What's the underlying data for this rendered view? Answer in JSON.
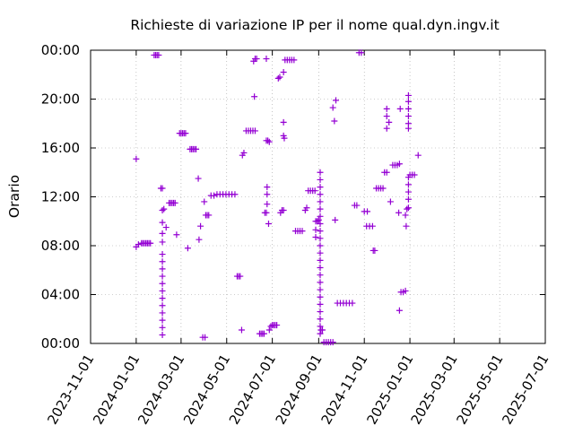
{
  "chart_data": {
    "type": "scatter",
    "title": "Richieste di variazione IP per il nome qual.dyn.ingv.it",
    "xlabel": "",
    "ylabel": "Orario",
    "x_ticks": [
      "2023-11-01",
      "2024-01-01",
      "2024-03-01",
      "2024-05-01",
      "2024-07-01",
      "2024-09-01",
      "2024-11-01",
      "2025-01-01",
      "2025-03-01",
      "2025-05-01",
      "2025-07-01"
    ],
    "y_ticks": [
      "00:00",
      "04:00",
      "08:00",
      "12:00",
      "16:00",
      "20:00",
      "00:00"
    ],
    "xlim": [
      "2023-11-01",
      "2025-07-01"
    ],
    "ylim": [
      0,
      24
    ],
    "grid": true,
    "marker": "+",
    "color": "#9400d3",
    "points": [
      {
        "x": "2024-01-01",
        "y": 15.1
      },
      {
        "x": "2024-01-01",
        "y": 7.9
      },
      {
        "x": "2024-01-04",
        "y": 8.1
      },
      {
        "x": "2024-01-08",
        "y": 8.2
      },
      {
        "x": "2024-01-10",
        "y": 8.2
      },
      {
        "x": "2024-01-12",
        "y": 8.2
      },
      {
        "x": "2024-01-14",
        "y": 8.2
      },
      {
        "x": "2024-01-16",
        "y": 8.2
      },
      {
        "x": "2024-01-18",
        "y": 8.2
      },
      {
        "x": "2024-01-20",
        "y": 8.2
      },
      {
        "x": "2024-01-25",
        "y": 23.6
      },
      {
        "x": "2024-01-27",
        "y": 23.6
      },
      {
        "x": "2024-01-29",
        "y": 23.6
      },
      {
        "x": "2024-01-31",
        "y": 23.6
      },
      {
        "x": "2024-02-03",
        "y": 12.7
      },
      {
        "x": "2024-02-05",
        "y": 12.7
      },
      {
        "x": "2024-02-05",
        "y": 10.9
      },
      {
        "x": "2024-02-07",
        "y": 11.0
      },
      {
        "x": "2024-02-05",
        "y": 0.7
      },
      {
        "x": "2024-02-05",
        "y": 1.3
      },
      {
        "x": "2024-02-05",
        "y": 1.9
      },
      {
        "x": "2024-02-05",
        "y": 2.5
      },
      {
        "x": "2024-02-05",
        "y": 3.1
      },
      {
        "x": "2024-02-05",
        "y": 3.7
      },
      {
        "x": "2024-02-05",
        "y": 4.3
      },
      {
        "x": "2024-02-05",
        "y": 4.9
      },
      {
        "x": "2024-02-05",
        "y": 5.5
      },
      {
        "x": "2024-02-05",
        "y": 6.1
      },
      {
        "x": "2024-02-05",
        "y": 6.7
      },
      {
        "x": "2024-02-05",
        "y": 7.3
      },
      {
        "x": "2024-02-05",
        "y": 8.3
      },
      {
        "x": "2024-02-05",
        "y": 9.0
      },
      {
        "x": "2024-02-05",
        "y": 9.9
      },
      {
        "x": "2024-02-10",
        "y": 9.5
      },
      {
        "x": "2024-02-14",
        "y": 11.5
      },
      {
        "x": "2024-02-16",
        "y": 11.5
      },
      {
        "x": "2024-02-18",
        "y": 11.5
      },
      {
        "x": "2024-02-20",
        "y": 11.5
      },
      {
        "x": "2024-02-22",
        "y": 11.5
      },
      {
        "x": "2024-02-24",
        "y": 8.9
      },
      {
        "x": "2024-02-28",
        "y": 17.2
      },
      {
        "x": "2024-03-01",
        "y": 17.2
      },
      {
        "x": "2024-03-03",
        "y": 17.2
      },
      {
        "x": "2024-03-05",
        "y": 17.2
      },
      {
        "x": "2024-03-07",
        "y": 17.2
      },
      {
        "x": "2024-03-10",
        "y": 7.8
      },
      {
        "x": "2024-03-13",
        "y": 15.9
      },
      {
        "x": "2024-03-15",
        "y": 15.9
      },
      {
        "x": "2024-03-17",
        "y": 15.9
      },
      {
        "x": "2024-03-19",
        "y": 15.9
      },
      {
        "x": "2024-03-21",
        "y": 15.9
      },
      {
        "x": "2024-03-24",
        "y": 13.5
      },
      {
        "x": "2024-03-25",
        "y": 8.5
      },
      {
        "x": "2024-03-27",
        "y": 9.6
      },
      {
        "x": "2024-04-01",
        "y": 11.6
      },
      {
        "x": "2024-03-30",
        "y": 0.5
      },
      {
        "x": "2024-04-02",
        "y": 0.5
      },
      {
        "x": "2024-04-03",
        "y": 10.5
      },
      {
        "x": "2024-04-05",
        "y": 10.5
      },
      {
        "x": "2024-04-07",
        "y": 10.5
      },
      {
        "x": "2024-04-10",
        "y": 12.1
      },
      {
        "x": "2024-04-14",
        "y": 12.1
      },
      {
        "x": "2024-04-18",
        "y": 12.2
      },
      {
        "x": "2024-04-22",
        "y": 12.2
      },
      {
        "x": "2024-04-26",
        "y": 12.2
      },
      {
        "x": "2024-04-30",
        "y": 12.2
      },
      {
        "x": "2024-05-04",
        "y": 12.2
      },
      {
        "x": "2024-05-08",
        "y": 12.2
      },
      {
        "x": "2024-05-12",
        "y": 12.2
      },
      {
        "x": "2024-05-15",
        "y": 5.5
      },
      {
        "x": "2024-05-17",
        "y": 5.5
      },
      {
        "x": "2024-05-19",
        "y": 5.5
      },
      {
        "x": "2024-05-21",
        "y": 1.1
      },
      {
        "x": "2024-05-22",
        "y": 15.4
      },
      {
        "x": "2024-05-24",
        "y": 15.6
      },
      {
        "x": "2024-05-27",
        "y": 17.4
      },
      {
        "x": "2024-05-30",
        "y": 17.4
      },
      {
        "x": "2024-06-02",
        "y": 17.4
      },
      {
        "x": "2024-06-05",
        "y": 17.4
      },
      {
        "x": "2024-06-08",
        "y": 17.4
      },
      {
        "x": "2024-06-06",
        "y": 23.1
      },
      {
        "x": "2024-06-08",
        "y": 23.3
      },
      {
        "x": "2024-06-10",
        "y": 23.3
      },
      {
        "x": "2024-06-07",
        "y": 20.2
      },
      {
        "x": "2024-06-14",
        "y": 0.8
      },
      {
        "x": "2024-06-16",
        "y": 0.8
      },
      {
        "x": "2024-06-18",
        "y": 0.8
      },
      {
        "x": "2024-06-20",
        "y": 0.8
      },
      {
        "x": "2024-06-21",
        "y": 10.7
      },
      {
        "x": "2024-06-23",
        "y": 10.7
      },
      {
        "x": "2024-06-23",
        "y": 23.3
      },
      {
        "x": "2024-06-23",
        "y": 16.6
      },
      {
        "x": "2024-06-25",
        "y": 16.6
      },
      {
        "x": "2024-06-27",
        "y": 16.5
      },
      {
        "x": "2024-06-24",
        "y": 12.8
      },
      {
        "x": "2024-06-24",
        "y": 12.2
      },
      {
        "x": "2024-06-24",
        "y": 11.4
      },
      {
        "x": "2024-06-26",
        "y": 9.8
      },
      {
        "x": "2024-06-27",
        "y": 1.1
      },
      {
        "x": "2024-06-29",
        "y": 1.4
      },
      {
        "x": "2024-07-01",
        "y": 1.5
      },
      {
        "x": "2024-07-03",
        "y": 1.5
      },
      {
        "x": "2024-07-05",
        "y": 1.5
      },
      {
        "x": "2024-07-07",
        "y": 1.5
      },
      {
        "x": "2024-07-09",
        "y": 21.7
      },
      {
        "x": "2024-07-11",
        "y": 21.8
      },
      {
        "x": "2024-07-12",
        "y": 10.7
      },
      {
        "x": "2024-07-14",
        "y": 10.9
      },
      {
        "x": "2024-07-16",
        "y": 10.9
      },
      {
        "x": "2024-07-16",
        "y": 18.1
      },
      {
        "x": "2024-07-16",
        "y": 17.0
      },
      {
        "x": "2024-07-17",
        "y": 16.8
      },
      {
        "x": "2024-07-16",
        "y": 22.2
      },
      {
        "x": "2024-07-18",
        "y": 23.2
      },
      {
        "x": "2024-07-21",
        "y": 23.2
      },
      {
        "x": "2024-07-24",
        "y": 23.2
      },
      {
        "x": "2024-07-27",
        "y": 23.2
      },
      {
        "x": "2024-07-30",
        "y": 23.2
      },
      {
        "x": "2024-08-01",
        "y": 9.2
      },
      {
        "x": "2024-08-04",
        "y": 9.2
      },
      {
        "x": "2024-08-07",
        "y": 9.2
      },
      {
        "x": "2024-08-10",
        "y": 9.2
      },
      {
        "x": "2024-08-14",
        "y": 10.9
      },
      {
        "x": "2024-08-16",
        "y": 11.1
      },
      {
        "x": "2024-08-18",
        "y": 12.5
      },
      {
        "x": "2024-08-21",
        "y": 12.5
      },
      {
        "x": "2024-08-24",
        "y": 12.5
      },
      {
        "x": "2024-08-27",
        "y": 12.5
      },
      {
        "x": "2024-08-28",
        "y": 10.0
      },
      {
        "x": "2024-08-28",
        "y": 9.3
      },
      {
        "x": "2024-08-28",
        "y": 8.7
      },
      {
        "x": "2024-08-30",
        "y": 10.0
      },
      {
        "x": "2024-09-01",
        "y": 10.1
      },
      {
        "x": "2024-09-03",
        "y": 0.8
      },
      {
        "x": "2024-09-03",
        "y": 1.4
      },
      {
        "x": "2024-09-03",
        "y": 2.0
      },
      {
        "x": "2024-09-03",
        "y": 2.6
      },
      {
        "x": "2024-09-03",
        "y": 3.2
      },
      {
        "x": "2024-09-03",
        "y": 3.8
      },
      {
        "x": "2024-09-03",
        "y": 4.4
      },
      {
        "x": "2024-09-03",
        "y": 5.0
      },
      {
        "x": "2024-09-03",
        "y": 5.6
      },
      {
        "x": "2024-09-03",
        "y": 6.2
      },
      {
        "x": "2024-09-03",
        "y": 6.8
      },
      {
        "x": "2024-09-03",
        "y": 7.4
      },
      {
        "x": "2024-09-03",
        "y": 8.0
      },
      {
        "x": "2024-09-03",
        "y": 8.6
      },
      {
        "x": "2024-09-03",
        "y": 9.2
      },
      {
        "x": "2024-09-03",
        "y": 9.8
      },
      {
        "x": "2024-09-03",
        "y": 10.4
      },
      {
        "x": "2024-09-03",
        "y": 11.0
      },
      {
        "x": "2024-09-03",
        "y": 11.6
      },
      {
        "x": "2024-09-03",
        "y": 12.2
      },
      {
        "x": "2024-09-03",
        "y": 12.8
      },
      {
        "x": "2024-09-03",
        "y": 13.4
      },
      {
        "x": "2024-09-03",
        "y": 14.0
      },
      {
        "x": "2024-09-04",
        "y": 1.1
      },
      {
        "x": "2024-09-06",
        "y": 1.1
      },
      {
        "x": "2024-09-08",
        "y": 0.1
      },
      {
        "x": "2024-09-11",
        "y": 0.1
      },
      {
        "x": "2024-09-14",
        "y": 0.1
      },
      {
        "x": "2024-09-17",
        "y": 0.1
      },
      {
        "x": "2024-09-20",
        "y": 0.1
      },
      {
        "x": "2024-09-20",
        "y": 19.3
      },
      {
        "x": "2024-09-22",
        "y": 18.2
      },
      {
        "x": "2024-09-24",
        "y": 19.9
      },
      {
        "x": "2024-09-23",
        "y": 10.1
      },
      {
        "x": "2024-09-26",
        "y": 3.3
      },
      {
        "x": "2024-09-30",
        "y": 3.3
      },
      {
        "x": "2024-10-04",
        "y": 3.3
      },
      {
        "x": "2024-10-08",
        "y": 3.3
      },
      {
        "x": "2024-10-12",
        "y": 3.3
      },
      {
        "x": "2024-10-16",
        "y": 3.3
      },
      {
        "x": "2024-10-19",
        "y": 11.3
      },
      {
        "x": "2024-10-22",
        "y": 11.3
      },
      {
        "x": "2024-10-25",
        "y": 23.8
      },
      {
        "x": "2024-10-28",
        "y": 23.8
      },
      {
        "x": "2024-11-01",
        "y": 10.8
      },
      {
        "x": "2024-11-05",
        "y": 10.8
      },
      {
        "x": "2024-11-04",
        "y": 9.6
      },
      {
        "x": "2024-11-08",
        "y": 9.6
      },
      {
        "x": "2024-11-12",
        "y": 9.6
      },
      {
        "x": "2024-11-13",
        "y": 7.6
      },
      {
        "x": "2024-11-15",
        "y": 7.6
      },
      {
        "x": "2024-11-17",
        "y": 12.7
      },
      {
        "x": "2024-11-20",
        "y": 12.7
      },
      {
        "x": "2024-11-23",
        "y": 12.7
      },
      {
        "x": "2024-11-26",
        "y": 12.7
      },
      {
        "x": "2024-11-28",
        "y": 14.0
      },
      {
        "x": "2024-12-01",
        "y": 14.0
      },
      {
        "x": "2024-12-01",
        "y": 19.2
      },
      {
        "x": "2024-12-01",
        "y": 18.6
      },
      {
        "x": "2024-12-01",
        "y": 17.6
      },
      {
        "x": "2024-12-04",
        "y": 18.1
      },
      {
        "x": "2024-12-06",
        "y": 11.6
      },
      {
        "x": "2024-12-09",
        "y": 14.6
      },
      {
        "x": "2024-12-12",
        "y": 14.6
      },
      {
        "x": "2024-12-15",
        "y": 14.6
      },
      {
        "x": "2024-12-18",
        "y": 14.7
      },
      {
        "x": "2024-12-17",
        "y": 10.7
      },
      {
        "x": "2024-12-19",
        "y": 19.2
      },
      {
        "x": "2024-12-18",
        "y": 2.7
      },
      {
        "x": "2024-12-20",
        "y": 4.2
      },
      {
        "x": "2024-12-23",
        "y": 4.2
      },
      {
        "x": "2024-12-26",
        "y": 4.3
      },
      {
        "x": "2024-12-26",
        "y": 10.5
      },
      {
        "x": "2024-12-27",
        "y": 9.6
      },
      {
        "x": "2024-12-28",
        "y": 11.0
      },
      {
        "x": "2024-12-30",
        "y": 11.1
      },
      {
        "x": "2024-12-30",
        "y": 20.3
      },
      {
        "x": "2024-12-30",
        "y": 19.8
      },
      {
        "x": "2024-12-30",
        "y": 19.2
      },
      {
        "x": "2024-12-30",
        "y": 18.6
      },
      {
        "x": "2024-12-30",
        "y": 18.0
      },
      {
        "x": "2024-12-30",
        "y": 17.6
      },
      {
        "x": "2024-12-30",
        "y": 13.6
      },
      {
        "x": "2024-12-30",
        "y": 13.0
      },
      {
        "x": "2024-12-30",
        "y": 12.4
      },
      {
        "x": "2024-12-30",
        "y": 11.8
      },
      {
        "x": "2025-01-01",
        "y": 13.8
      },
      {
        "x": "2025-01-04",
        "y": 13.8
      },
      {
        "x": "2025-01-07",
        "y": 13.8
      },
      {
        "x": "2025-01-12",
        "y": 15.4
      }
    ]
  }
}
